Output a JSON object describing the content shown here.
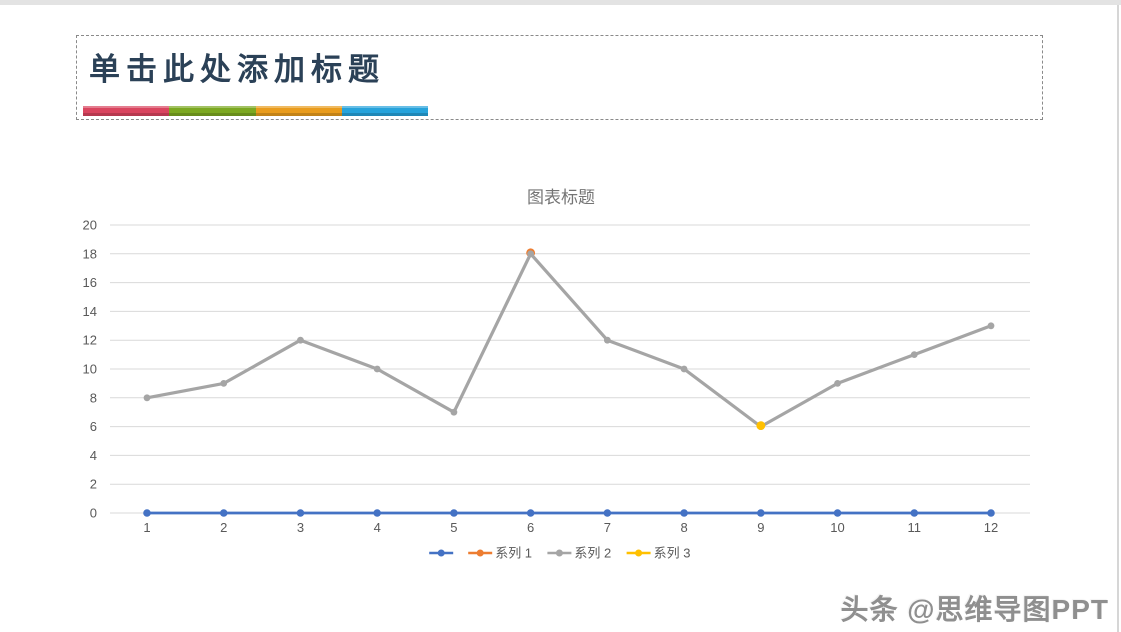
{
  "window": {
    "watermark": "头条 @思维导图PPT"
  },
  "title_box": {
    "title": "单击此处添加标题",
    "underline_colors": [
      "#D9455F",
      "#7CA821",
      "#E99C1D",
      "#27A3DB"
    ]
  },
  "chart_data": {
    "type": "line",
    "title": "图表标题",
    "x": [
      1,
      2,
      3,
      4,
      5,
      6,
      7,
      8,
      9,
      10,
      11,
      12
    ],
    "ylim": [
      0,
      20
    ],
    "ytick_step": 2,
    "grid": true,
    "legend_position": "bottom",
    "colors": {
      "gridline": "#D9D9D9",
      "tick_label": "#595959",
      "chart_title": "#757575"
    },
    "series": [
      {
        "name": "",
        "color": "#4472C4",
        "values": [
          0,
          0,
          0,
          0,
          0,
          0,
          0,
          0,
          0,
          0,
          0,
          0
        ]
      },
      {
        "name": "系列 1",
        "color": "#ED7D31",
        "points": [
          [
            6,
            18
          ]
        ]
      },
      {
        "name": "系列 2",
        "color": "#A5A5A5",
        "values": [
          8,
          9,
          12,
          10,
          7,
          18,
          12,
          10,
          6,
          9,
          11,
          13
        ]
      },
      {
        "name": "系列 3",
        "color": "#FFC000",
        "points": [
          [
            9,
            6
          ]
        ]
      }
    ]
  }
}
